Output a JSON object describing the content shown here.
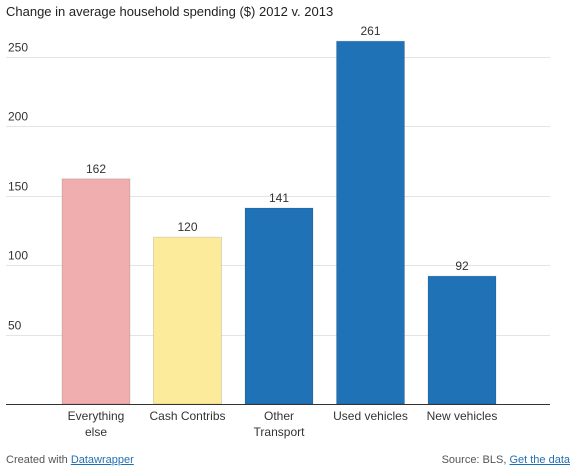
{
  "chart_data": {
    "type": "bar",
    "title": "Change in average household spending ($) 2012 v. 2013",
    "xlabel": "",
    "ylabel": "",
    "ylim": [
      0,
      280
    ],
    "yticks": [
      50,
      100,
      150,
      200,
      250
    ],
    "grid": true,
    "categories": [
      [
        "Everything",
        "else"
      ],
      [
        "Cash Contribs"
      ],
      [
        "Other",
        "Transport"
      ],
      [
        "Used vehicles"
      ],
      [
        "New vehicles"
      ]
    ],
    "values": [
      162,
      120,
      141,
      261,
      92
    ],
    "value_labels": [
      "162",
      "120",
      "141",
      "261",
      "92"
    ],
    "colors": [
      "#f0afae",
      "#fdeb9c",
      "#1f72b6",
      "#1f72b6",
      "#1f72b6"
    ]
  },
  "footer": {
    "created_prefix": "Created with ",
    "created_link": "Datawrapper",
    "source_prefix": "Source: BLS, ",
    "source_link": "Get the data"
  },
  "colors": {
    "grid": "#e4e4e4",
    "axis": "#333333",
    "link": "#1f6fb5"
  }
}
